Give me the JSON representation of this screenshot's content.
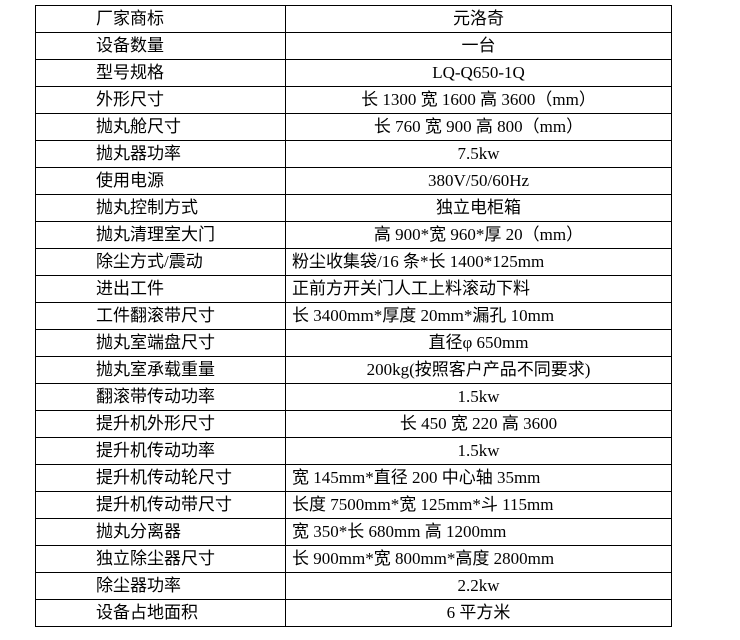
{
  "rows": [
    {
      "label": "厂家商标",
      "value": "元洛奇"
    },
    {
      "label": "设备数量",
      "value": "一台"
    },
    {
      "label": "型号规格",
      "value": "LQ-Q650-1Q"
    },
    {
      "label": "外形尺寸",
      "value": "长 1300 宽 1600 高 3600（mm）"
    },
    {
      "label": "抛丸舱尺寸",
      "value": "长 760 宽 900 高 800（mm）"
    },
    {
      "label": "抛丸器功率",
      "value": "7.5kw"
    },
    {
      "label": "使用电源",
      "value": "380V/50/60Hz"
    },
    {
      "label": "抛丸控制方式",
      "value": "独立电柜箱"
    },
    {
      "label": "抛丸清理室大门",
      "value": "高 900*宽 960*厚 20（mm）"
    },
    {
      "label": "除尘方式/震动",
      "value": "粉尘收集袋/16 条*长 1400*125mm"
    },
    {
      "label": "进出工件",
      "value": "正前方开关门人工上料滚动下料"
    },
    {
      "label": "工件翻滚带尺寸",
      "value": "长 3400mm*厚度 20mm*漏孔 10mm"
    },
    {
      "label": "抛丸室端盘尺寸",
      "value": "直径φ 650mm"
    },
    {
      "label": "抛丸室承载重量",
      "value": "200kg(按照客户产品不同要求)"
    },
    {
      "label": "翻滚带传动功率",
      "value": "1.5kw"
    },
    {
      "label": "提升机外形尺寸",
      "value": "长 450 宽 220 高 3600"
    },
    {
      "label": "提升机传动功率",
      "value": "1.5kw"
    },
    {
      "label": "提升机传动轮尺寸",
      "value": "宽 145mm*直径 200 中心轴 35mm"
    },
    {
      "label": "提升机传动带尺寸",
      "value": "长度 7500mm*宽 125mm*斗 115mm"
    },
    {
      "label": "抛丸分离器",
      "value": "宽 350*长 680mm 高 1200mm"
    },
    {
      "label": "独立除尘器尺寸",
      "value": "长 900mm*宽 800mm*高度 2800mm"
    },
    {
      "label": "除尘器功率",
      "value": "2.2kw"
    },
    {
      "label": "设备占地面积",
      "value": "6 平方米"
    }
  ]
}
